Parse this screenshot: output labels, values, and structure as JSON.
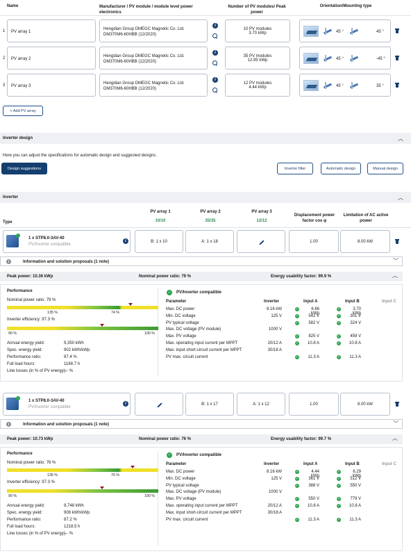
{
  "arrays_header": {
    "name": "Name",
    "manufacturer": "Manufacturer / PV module / module level power electronics",
    "modules": "Number of PV modules/ Peak power",
    "orientation": "Orientation/Mounting type"
  },
  "arrays": [
    {
      "idx": "1",
      "name": "PV array 1",
      "manufacturer": "Hengdian Group DMEGC Magnetic Co. Ltd.",
      "module": "DM370M6-60HBB (12/2020)",
      "count": "10 PV modules",
      "power": "3.70 kWp",
      "tilt": "45 °",
      "azimuth": "45 °"
    },
    {
      "idx": "2",
      "name": "PV array 2",
      "manufacturer": "Hengdian Group DMEGC Magnetic Co. Ltd.",
      "module": "DM370M6-60HBB (12/2020)",
      "count": "35 PV modules",
      "power": "12.95 kWp",
      "tilt": "45 °",
      "azimuth": "-45 °"
    },
    {
      "idx": "3",
      "name": "PV array 3",
      "manufacturer": "Hengdian Group DMEGC Magnetic Co. Ltd.",
      "module": "DM370M6-60HBB (12/2020)",
      "count": "12 PV modules",
      "power": "4.44 kWp",
      "tilt": "45 °",
      "azimuth": "35 °"
    }
  ],
  "add_array": "+ Add PV array",
  "inverter_design": {
    "title": "Inverter design",
    "desc": "Here you can adjust the specifications for automatic design and suggested designs.",
    "design_suggestions": "Design suggestions",
    "inverter_filter": "Inverter filter",
    "automatic_design": "Automatic design",
    "manual_design": "Manual design"
  },
  "inverter_section": {
    "title": "Inverter",
    "type": "Type",
    "col1": "PV array 1",
    "col1v": "10/10",
    "col2": "PV array 2",
    "col2v": "35/35",
    "col3": "PV array 3",
    "col3v": "12/12",
    "disp": "Displacement power factor cos φ",
    "limit": "Limitation of AC active power"
  },
  "inverters": [
    {
      "name": "1 x STP8.0-3AV-40",
      "sub": "PV/Inverter compatible",
      "a1": "B: 1 x 10",
      "a2": "A: 1 x 18",
      "a3": "",
      "cos": "1.00",
      "lim": "8.00 kW",
      "info": "Information and solution proposals (1 note)",
      "peak": "Peak power: 10.36 kWp",
      "nom": "Nominal power ratio: 79 %",
      "eu": "Energy usability factor: 99.9 %",
      "perf": {
        "title": "Performance",
        "npr_label": "Nominal power ratio: 79 %",
        "npr_value": 79,
        "npr_lo": "135 %",
        "npr_hi": "74 %",
        "eff_label": "Inverter efficiency: 97.3 %",
        "eff_value": 97.3,
        "eff_lo": "90 %",
        "eff_hi": "100 %",
        "rows": [
          [
            "Annual energy yield:",
            "9,350 kWh"
          ],
          [
            "Spec. energy yield:",
            "902 kWh/kWp"
          ],
          [
            "Performance ratio:",
            "87.4 %"
          ],
          [
            "Full load hours:",
            "1168.7 h"
          ],
          [
            "Line losses (in % of PV energy):",
            "--- %"
          ]
        ]
      },
      "compat": {
        "title": "PV/Inverter compatible",
        "head": [
          "Parameter",
          "Inverter",
          "Input A",
          "Input B",
          "Input C"
        ],
        "rows": [
          [
            "Max. DC power",
            "8.16 kW",
            "6.66 kWp",
            "3.70 kWp",
            ""
          ],
          [
            "Min. DC voltage",
            "125 V",
            "542 V",
            "301 V",
            ""
          ],
          [
            "PV typical voltage",
            "",
            "582 V",
            "324 V",
            ""
          ],
          [
            "Max. DC voltage (PV module)",
            "1000 V",
            "",
            "",
            ""
          ],
          [
            "Max. PV voltage",
            "",
            "825 V",
            "459 V",
            ""
          ],
          [
            "Max. operating input current per MPPT",
            "20/12 A",
            "10.8 A",
            "10.8 A",
            ""
          ],
          [
            "Max. input short-circuit current per MPPT",
            "30/18 A",
            "",
            "",
            ""
          ],
          [
            "PV max. circuit current",
            "",
            "11.3 A",
            "11.3 A",
            ""
          ]
        ]
      }
    },
    {
      "name": "1 x STP8.0-3AV-40",
      "sub": "PV/Inverter compatible",
      "a1": "",
      "a2": "B: 1 x 17",
      "a3": "A: 1 x 12",
      "cos": "1.00",
      "lim": "8.00 kW",
      "info": "Information and solution proposals (1 note)",
      "peak": "Peak power: 10.73 kWp",
      "nom": "Nominal power ratio: 76 %",
      "eu": "Energy usability factor: 99.7 %",
      "perf": {
        "title": "Performance",
        "npr_label": "Nominal power ratio: 76 %",
        "npr_value": 76,
        "npr_lo": "135 %",
        "npr_hi": "75 %",
        "eff_label": "Inverter efficiency: 97.3 %",
        "eff_value": 97.3,
        "eff_lo": "90 %",
        "eff_hi": "100 %",
        "rows": [
          [
            "Annual energy yield:",
            "9,748 kWh"
          ],
          [
            "Spec. energy yield:",
            "908 kWh/kWp"
          ],
          [
            "Performance ratio:",
            "87.2 %"
          ],
          [
            "Full load hours:",
            "1218.5 h"
          ],
          [
            "Line losses (in % of PV energy):",
            "--- %"
          ]
        ]
      },
      "compat": {
        "title": "PV/Inverter compatible",
        "head": [
          "Parameter",
          "Inverter",
          "Input A",
          "Input B",
          "Input C"
        ],
        "rows": [
          [
            "Max. DC power",
            "8.16 kW",
            "4.44 kWp",
            "6.29 kWp",
            ""
          ],
          [
            "Min. DC voltage",
            "125 V",
            "361 V",
            "512 V",
            ""
          ],
          [
            "PV typical voltage",
            "",
            "388 V",
            "550 V",
            ""
          ],
          [
            "Max. DC voltage (PV module)",
            "1000 V",
            "",
            "",
            ""
          ],
          [
            "Max. PV voltage",
            "",
            "550 V",
            "779 V",
            ""
          ],
          [
            "Max. operating input current per MPPT",
            "20/12 A",
            "10.8 A",
            "10.8 A",
            ""
          ],
          [
            "Max. input short-circuit current per MPPT",
            "30/18 A",
            "",
            "",
            ""
          ],
          [
            "PV max. circuit current",
            "",
            "11.3 A",
            "11.3 A",
            ""
          ]
        ]
      }
    }
  ]
}
